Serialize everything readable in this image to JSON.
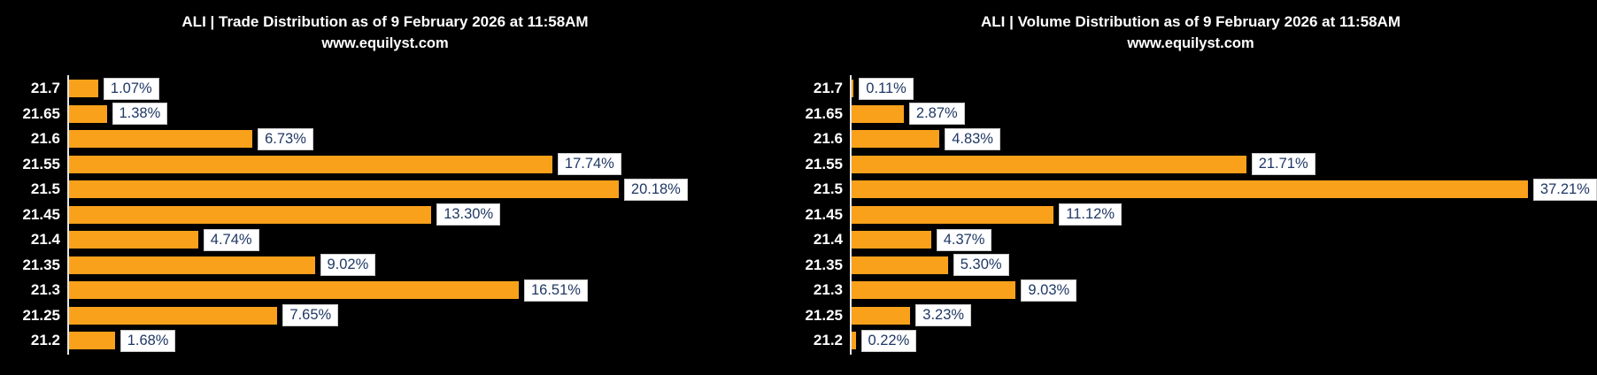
{
  "style": {
    "background": "#000000",
    "bar_color": "#F9A11B",
    "value_text": "#1F3864",
    "value_bg": "#FFFFFF",
    "value_border": "#C9C9C9",
    "axis_line": "#E6E6E6",
    "title_text": "#FFFFFF",
    "tick_text": "#FFFFFF"
  },
  "chart_data": [
    {
      "type": "bar",
      "orientation": "horizontal",
      "title": "ALI | Trade Distribution as of 9 February 2026 at 11:58AM",
      "subtitle": "www.equilyst.com",
      "categories": [
        "21.7",
        "21.65",
        "21.6",
        "21.55",
        "21.5",
        "21.45",
        "21.4",
        "21.35",
        "21.3",
        "21.25",
        "21.2"
      ],
      "values": [
        1.07,
        1.38,
        6.73,
        17.74,
        20.18,
        13.3,
        4.74,
        9.02,
        16.51,
        7.65,
        1.68
      ],
      "value_labels": [
        "1.07%",
        "1.38%",
        "6.73%",
        "17.74%",
        "20.18%",
        "13.30%",
        "4.74%",
        "9.02%",
        "16.51%",
        "7.65%",
        "1.68%"
      ],
      "value_suffix": "%",
      "xlabel": "",
      "ylabel": "",
      "legend": null,
      "grid": false,
      "x_tick_labels_visible": false
    },
    {
      "type": "bar",
      "orientation": "horizontal",
      "title": "ALI | Volume Distribution as of 9 February 2026 at 11:58AM",
      "subtitle": "www.equilyst.com",
      "categories": [
        "21.7",
        "21.65",
        "21.6",
        "21.55",
        "21.5",
        "21.45",
        "21.4",
        "21.35",
        "21.3",
        "21.25",
        "21.2"
      ],
      "values": [
        0.11,
        2.87,
        4.83,
        21.71,
        37.21,
        11.12,
        4.37,
        5.3,
        9.03,
        3.23,
        0.22
      ],
      "value_labels": [
        "0.11%",
        "2.87%",
        "4.83%",
        "21.71%",
        "37.21%",
        "11.12%",
        "4.37%",
        "5.30%",
        "9.03%",
        "3.23%",
        "0.22%"
      ],
      "value_suffix": "%",
      "xlabel": "",
      "ylabel": "",
      "legend": null,
      "grid": false,
      "x_tick_labels_visible": false
    }
  ]
}
